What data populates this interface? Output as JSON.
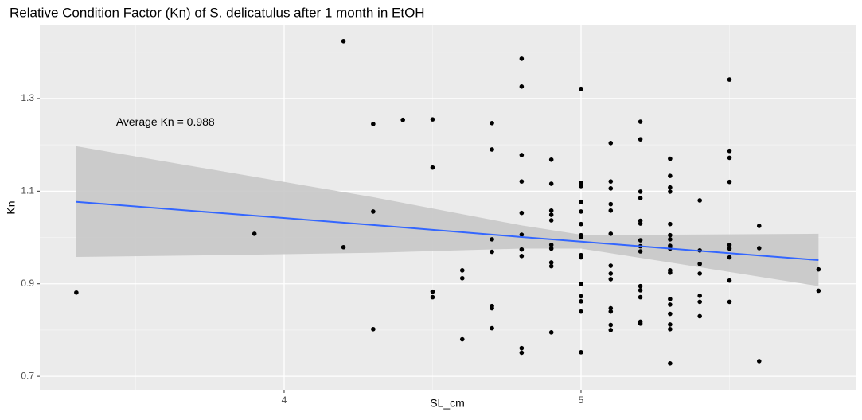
{
  "chart_data": {
    "type": "scatter",
    "title": "Relative Condition Factor (Kn) of S. delicatulus after 1 month in EtOH",
    "x_label": "SL_cm",
    "y_label": "Kn",
    "annotation": {
      "text": "Average Kn = 0.988",
      "x": 3.6,
      "y": 1.248
    },
    "xlim": [
      3.177,
      5.925
    ],
    "ylim": [
      0.671,
      1.458
    ],
    "xticks": [
      4,
      5
    ],
    "yticks": [
      0.7,
      0.9,
      1.1,
      1.3
    ],
    "x_minor_grid": [
      3.5,
      4.5,
      5.5
    ],
    "y_minor_grid": [
      0.8,
      1.0,
      1.2,
      1.4
    ],
    "grid": true,
    "point_color": "#000000",
    "line_color": "#3366ff",
    "band_color": "#c8c8c8",
    "x": [
      3.3,
      3.9,
      4.2,
      4.2,
      4.3,
      4.3,
      4.3,
      4.4,
      4.5,
      4.5,
      4.5,
      4.5,
      4.6,
      4.6,
      4.6,
      4.7,
      4.7,
      4.7,
      4.7,
      4.7,
      4.7,
      4.7,
      4.8,
      4.8,
      4.8,
      4.8,
      4.8,
      4.8,
      4.8,
      4.8,
      4.8,
      4.8,
      4.9,
      4.9,
      4.9,
      4.9,
      4.9,
      4.9,
      4.9,
      4.9,
      4.9,
      4.9,
      5.0,
      5.0,
      5.0,
      5.0,
      5.0,
      5.0,
      5.0,
      5.0,
      5.0,
      5.0,
      5.0,
      5.0,
      5.0,
      5.0,
      5.0,
      5.1,
      5.1,
      5.1,
      5.1,
      5.1,
      5.1,
      5.1,
      5.1,
      5.1,
      5.1,
      5.1,
      5.1,
      5.1,
      5.2,
      5.2,
      5.2,
      5.2,
      5.2,
      5.2,
      5.2,
      5.2,
      5.2,
      5.2,
      5.2,
      5.2,
      5.2,
      5.2,
      5.3,
      5.3,
      5.3,
      5.3,
      5.3,
      5.3,
      5.3,
      5.3,
      5.3,
      5.3,
      5.3,
      5.3,
      5.3,
      5.3,
      5.3,
      5.3,
      5.3,
      5.4,
      5.4,
      5.4,
      5.4,
      5.4,
      5.4,
      5.4,
      5.5,
      5.5,
      5.5,
      5.5,
      5.5,
      5.5,
      5.5,
      5.5,
      5.5,
      5.6,
      5.6,
      5.6,
      5.8,
      5.8
    ],
    "y": [
      0.881,
      1.008,
      1.424,
      0.979,
      1.245,
      1.056,
      0.802,
      1.254,
      1.255,
      1.151,
      0.883,
      0.871,
      0.929,
      0.912,
      0.78,
      1.247,
      1.19,
      0.996,
      0.969,
      0.852,
      0.847,
      0.804,
      1.386,
      1.326,
      1.178,
      1.121,
      1.053,
      1.006,
      0.974,
      0.96,
      0.761,
      0.751,
      1.168,
      1.116,
      1.058,
      1.049,
      1.037,
      0.984,
      0.976,
      0.946,
      0.938,
      0.795,
      1.321,
      1.118,
      1.111,
      1.077,
      1.056,
      1.029,
      1.005,
      1.001,
      0.962,
      0.957,
      0.9,
      0.873,
      0.862,
      0.84,
      0.752,
      1.204,
      1.121,
      1.106,
      1.072,
      1.058,
      1.008,
      0.939,
      0.922,
      0.91,
      0.847,
      0.84,
      0.811,
      0.8,
      1.25,
      1.212,
      1.099,
      1.085,
      1.036,
      1.03,
      0.994,
      0.981,
      0.97,
      0.895,
      0.886,
      0.871,
      0.818,
      0.814,
      1.17,
      1.133,
      1.108,
      1.099,
      1.029,
      1.005,
      0.996,
      0.982,
      0.976,
      0.929,
      0.924,
      0.867,
      0.855,
      0.835,
      0.812,
      0.802,
      0.728,
      1.08,
      0.972,
      0.943,
      0.922,
      0.874,
      0.861,
      0.83,
      1.341,
      1.187,
      1.172,
      1.12,
      0.984,
      0.976,
      0.957,
      0.907,
      0.861,
      1.025,
      0.977,
      0.733,
      0.931,
      0.885
    ],
    "fit": {
      "x": [
        3.3,
        3.8,
        4.3,
        4.8,
        5.0,
        5.3,
        5.8
      ],
      "y": [
        1.077,
        1.052,
        1.027,
        1.001,
        0.991,
        0.976,
        0.951
      ],
      "upper": [
        1.197,
        1.142,
        1.087,
        1.026,
        1.006,
        1.006,
        1.008
      ],
      "lower": [
        0.958,
        0.962,
        0.967,
        0.976,
        0.976,
        0.946,
        0.895
      ]
    }
  }
}
